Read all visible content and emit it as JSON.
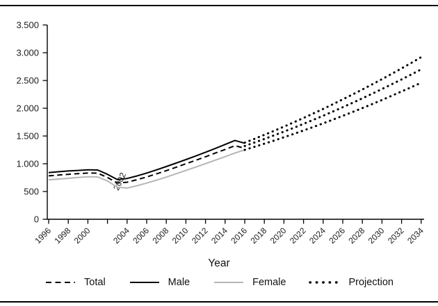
{
  "figure": {
    "background": "#ffffff",
    "axis_color": "#000000",
    "has_top_rule": true,
    "has_bottom_rule": true
  },
  "chart_data": {
    "type": "line",
    "title": "",
    "xlabel": "Year",
    "ylabel": "",
    "ylim": [
      0,
      3500
    ],
    "x_range": [
      1996,
      2034
    ],
    "grid": false,
    "legend_position": "bottom",
    "y_tick_values": [
      0,
      500,
      1000,
      1500,
      2000,
      2500,
      3000,
      3500
    ],
    "y_tick_labels": [
      "0",
      "500",
      "1.000",
      "1.500",
      "2.000",
      "2.500",
      "3.000",
      "3.500"
    ],
    "x_tick_years": [
      1996,
      1998,
      2000,
      2002,
      2004,
      2006,
      2008,
      2010,
      2012,
      2014,
      2016,
      2018,
      2020,
      2022,
      2024,
      2026,
      2028,
      2030,
      2032,
      2034
    ],
    "x_tick_labels": [
      "1996",
      "1998",
      "2000",
      "",
      "2004",
      "2006",
      "2008",
      "2010",
      "2012",
      "2014",
      "2016",
      "2018",
      "2020",
      "2022",
      "2024",
      "2026",
      "2028",
      "2030",
      "2032",
      "2034"
    ],
    "displaced_tick_annotation": {
      "text": "2002",
      "year": 2003.5,
      "value": 660,
      "rotation": -65
    },
    "series": [
      {
        "name": "Female",
        "style": "solid",
        "color": "#b5b5b5",
        "years": [
          1996,
          1997,
          1998,
          1999,
          2000,
          2001,
          2002,
          2003,
          2004,
          2005,
          2006,
          2007,
          2008,
          2009,
          2010,
          2011,
          2012,
          2013,
          2014,
          2015,
          2016
        ],
        "values": [
          710,
          724,
          738,
          752,
          766,
          762,
          690,
          578,
          562,
          604,
          652,
          704,
          760,
          820,
          880,
          940,
          1002,
          1065,
          1128,
          1192,
          1250
        ]
      },
      {
        "name": "Total",
        "style": "dashed",
        "color": "#000000",
        "years": [
          1996,
          1997,
          1998,
          1999,
          2000,
          2001,
          2002,
          2003,
          2004,
          2005,
          2006,
          2007,
          2008,
          2009,
          2010,
          2011,
          2012,
          2013,
          2014,
          2015,
          2016
        ],
        "values": [
          782,
          796,
          810,
          822,
          833,
          831,
          752,
          652,
          668,
          712,
          762,
          818,
          876,
          936,
          1000,
          1062,
          1126,
          1192,
          1258,
          1325,
          1280
        ]
      },
      {
        "name": "Male",
        "style": "solid",
        "color": "#000000",
        "years": [
          1996,
          1997,
          1998,
          1999,
          2000,
          2001,
          2002,
          2003,
          2004,
          2005,
          2006,
          2007,
          2008,
          2009,
          2010,
          2011,
          2012,
          2013,
          2014,
          2015,
          2016
        ],
        "values": [
          840,
          856,
          870,
          880,
          890,
          888,
          810,
          715,
          735,
          780,
          832,
          890,
          950,
          1012,
          1075,
          1140,
          1208,
          1276,
          1348,
          1420,
          1370
        ]
      },
      {
        "name": "Projection (Female)",
        "style": "dotted",
        "color": "#000000",
        "years": [
          2016,
          2017,
          2018,
          2019,
          2020,
          2021,
          2022,
          2023,
          2024,
          2025,
          2026,
          2027,
          2028,
          2029,
          2030,
          2031,
          2032,
          2033,
          2034
        ],
        "values": [
          1250,
          1305,
          1361,
          1418,
          1477,
          1538,
          1600,
          1663,
          1728,
          1795,
          1863,
          1932,
          2003,
          2075,
          2149,
          2225,
          2302,
          2380,
          2460
        ]
      },
      {
        "name": "Projection (Total)",
        "style": "dotted",
        "color": "#000000",
        "years": [
          2016,
          2017,
          2018,
          2019,
          2020,
          2021,
          2022,
          2023,
          2024,
          2025,
          2026,
          2027,
          2028,
          2029,
          2030,
          2031,
          2032,
          2033,
          2034
        ],
        "values": [
          1320,
          1382,
          1446,
          1512,
          1579,
          1648,
          1719,
          1791,
          1865,
          1941,
          2019,
          2098,
          2179,
          2261,
          2346,
          2432,
          2519,
          2609,
          2700
        ]
      },
      {
        "name": "Projection (Male)",
        "style": "dotted",
        "color": "#000000",
        "years": [
          2016,
          2017,
          2018,
          2019,
          2020,
          2021,
          2022,
          2023,
          2024,
          2025,
          2026,
          2027,
          2028,
          2029,
          2030,
          2031,
          2032,
          2033,
          2034
        ],
        "values": [
          1380,
          1449,
          1521,
          1594,
          1669,
          1746,
          1825,
          1906,
          1988,
          2073,
          2160,
          2248,
          2338,
          2430,
          2524,
          2620,
          2718,
          2818,
          2920
        ]
      }
    ]
  },
  "legend": {
    "items": [
      {
        "label": "Total",
        "style": "dashed",
        "color": "#000000"
      },
      {
        "label": "Male",
        "style": "solid",
        "color": "#000000"
      },
      {
        "label": "Female",
        "style": "solid",
        "color": "#b5b5b5"
      },
      {
        "label": "Projection",
        "style": "dotted",
        "color": "#000000"
      }
    ]
  }
}
